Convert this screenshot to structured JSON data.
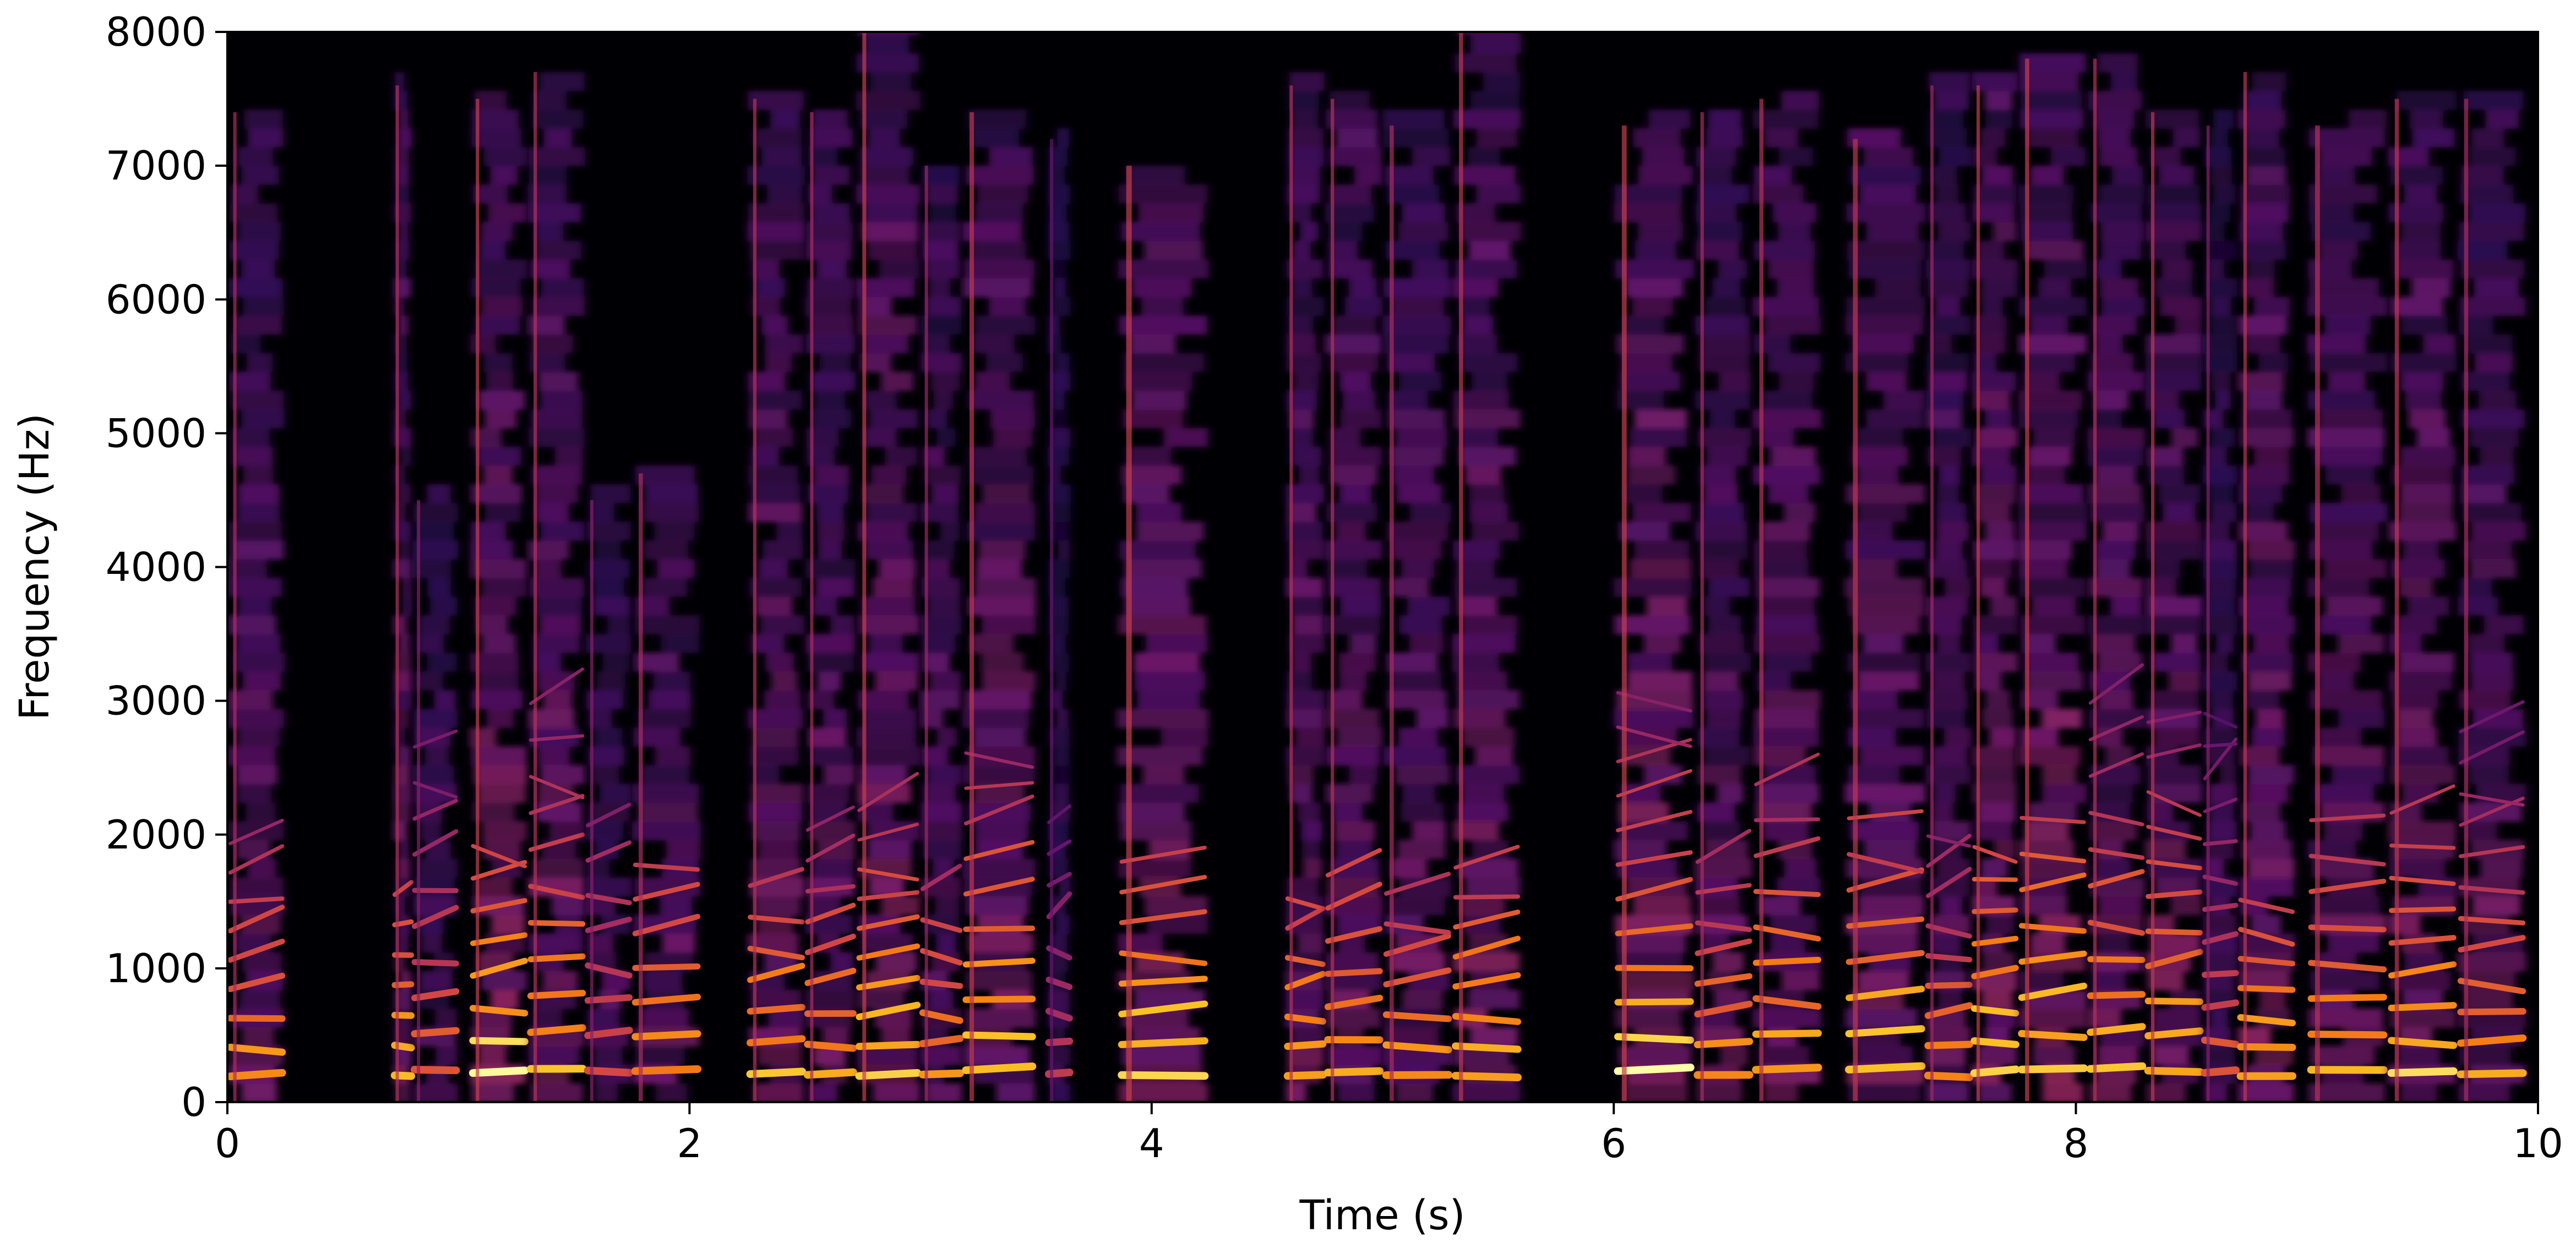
{
  "chart_data": {
    "type": "heatmap",
    "title": "",
    "xlabel": "Time (s)",
    "ylabel": "Frequency (Hz)",
    "xlim": [
      0,
      10
    ],
    "ylim": [
      0,
      8000
    ],
    "x_ticks": [
      0,
      2,
      4,
      6,
      8,
      10
    ],
    "y_ticks": [
      0,
      1000,
      2000,
      3000,
      4000,
      5000,
      6000,
      7000,
      8000
    ],
    "x_tick_labels": [
      "0",
      "2",
      "4",
      "6",
      "8",
      "10"
    ],
    "y_tick_labels": [
      "0",
      "1000",
      "2000",
      "3000",
      "4000",
      "5000",
      "6000",
      "7000",
      "8000"
    ],
    "colormap": "inferno",
    "colors": {
      "background": "#000004",
      "low": "#3b0f70",
      "mid": "#c73e4c",
      "high": "#fcffa4"
    },
    "grid": false,
    "legend": "none",
    "voiced_segments": [
      {
        "start": 0.0,
        "end": 0.25,
        "max_freq": 7400,
        "level": 0.85
      },
      {
        "start": 0.72,
        "end": 0.8,
        "max_freq": 7600,
        "level": 0.9
      },
      {
        "start": 0.8,
        "end": 1.0,
        "max_freq": 4500,
        "level": 0.7
      },
      {
        "start": 1.05,
        "end": 1.3,
        "max_freq": 7500,
        "level": 1.0
      },
      {
        "start": 1.3,
        "end": 1.55,
        "max_freq": 7700,
        "level": 0.9
      },
      {
        "start": 1.55,
        "end": 1.75,
        "max_freq": 4500,
        "level": 0.7
      },
      {
        "start": 1.75,
        "end": 2.05,
        "max_freq": 4700,
        "level": 0.85
      },
      {
        "start": 2.25,
        "end": 2.5,
        "max_freq": 7500,
        "level": 0.9
      },
      {
        "start": 2.5,
        "end": 2.72,
        "max_freq": 7400,
        "level": 0.85
      },
      {
        "start": 2.72,
        "end": 3.0,
        "max_freq": 8000,
        "level": 1.0
      },
      {
        "start": 3.0,
        "end": 3.18,
        "max_freq": 7000,
        "level": 0.8
      },
      {
        "start": 3.18,
        "end": 3.5,
        "max_freq": 7400,
        "level": 0.95
      },
      {
        "start": 3.55,
        "end": 3.65,
        "max_freq": 7200,
        "level": 0.55
      },
      {
        "start": 3.85,
        "end": 4.25,
        "max_freq": 7000,
        "level": 1.0
      },
      {
        "start": 4.58,
        "end": 4.75,
        "max_freq": 7600,
        "level": 0.9
      },
      {
        "start": 4.75,
        "end": 5.0,
        "max_freq": 7500,
        "level": 0.9
      },
      {
        "start": 5.0,
        "end": 5.3,
        "max_freq": 7300,
        "level": 0.85
      },
      {
        "start": 5.3,
        "end": 5.6,
        "max_freq": 8000,
        "level": 0.95
      },
      {
        "start": 6.0,
        "end": 6.35,
        "max_freq": 7300,
        "level": 1.0
      },
      {
        "start": 6.35,
        "end": 6.6,
        "max_freq": 7400,
        "level": 0.85
      },
      {
        "start": 6.6,
        "end": 6.9,
        "max_freq": 7500,
        "level": 0.9
      },
      {
        "start": 7.0,
        "end": 7.35,
        "max_freq": 7200,
        "level": 0.95
      },
      {
        "start": 7.35,
        "end": 7.55,
        "max_freq": 7600,
        "level": 0.8
      },
      {
        "start": 7.55,
        "end": 7.75,
        "max_freq": 7600,
        "level": 1.0
      },
      {
        "start": 7.75,
        "end": 8.05,
        "max_freq": 7800,
        "level": 1.0
      },
      {
        "start": 8.05,
        "end": 8.3,
        "max_freq": 7800,
        "level": 0.9
      },
      {
        "start": 8.3,
        "end": 8.55,
        "max_freq": 7400,
        "level": 0.95
      },
      {
        "start": 8.55,
        "end": 8.7,
        "max_freq": 7300,
        "level": 0.7
      },
      {
        "start": 8.7,
        "end": 8.95,
        "max_freq": 7700,
        "level": 0.95
      },
      {
        "start": 9.0,
        "end": 9.35,
        "max_freq": 7300,
        "level": 0.9
      },
      {
        "start": 9.35,
        "end": 9.65,
        "max_freq": 7500,
        "level": 0.95
      },
      {
        "start": 9.65,
        "end": 9.95,
        "max_freq": 7500,
        "level": 0.85
      }
    ]
  }
}
